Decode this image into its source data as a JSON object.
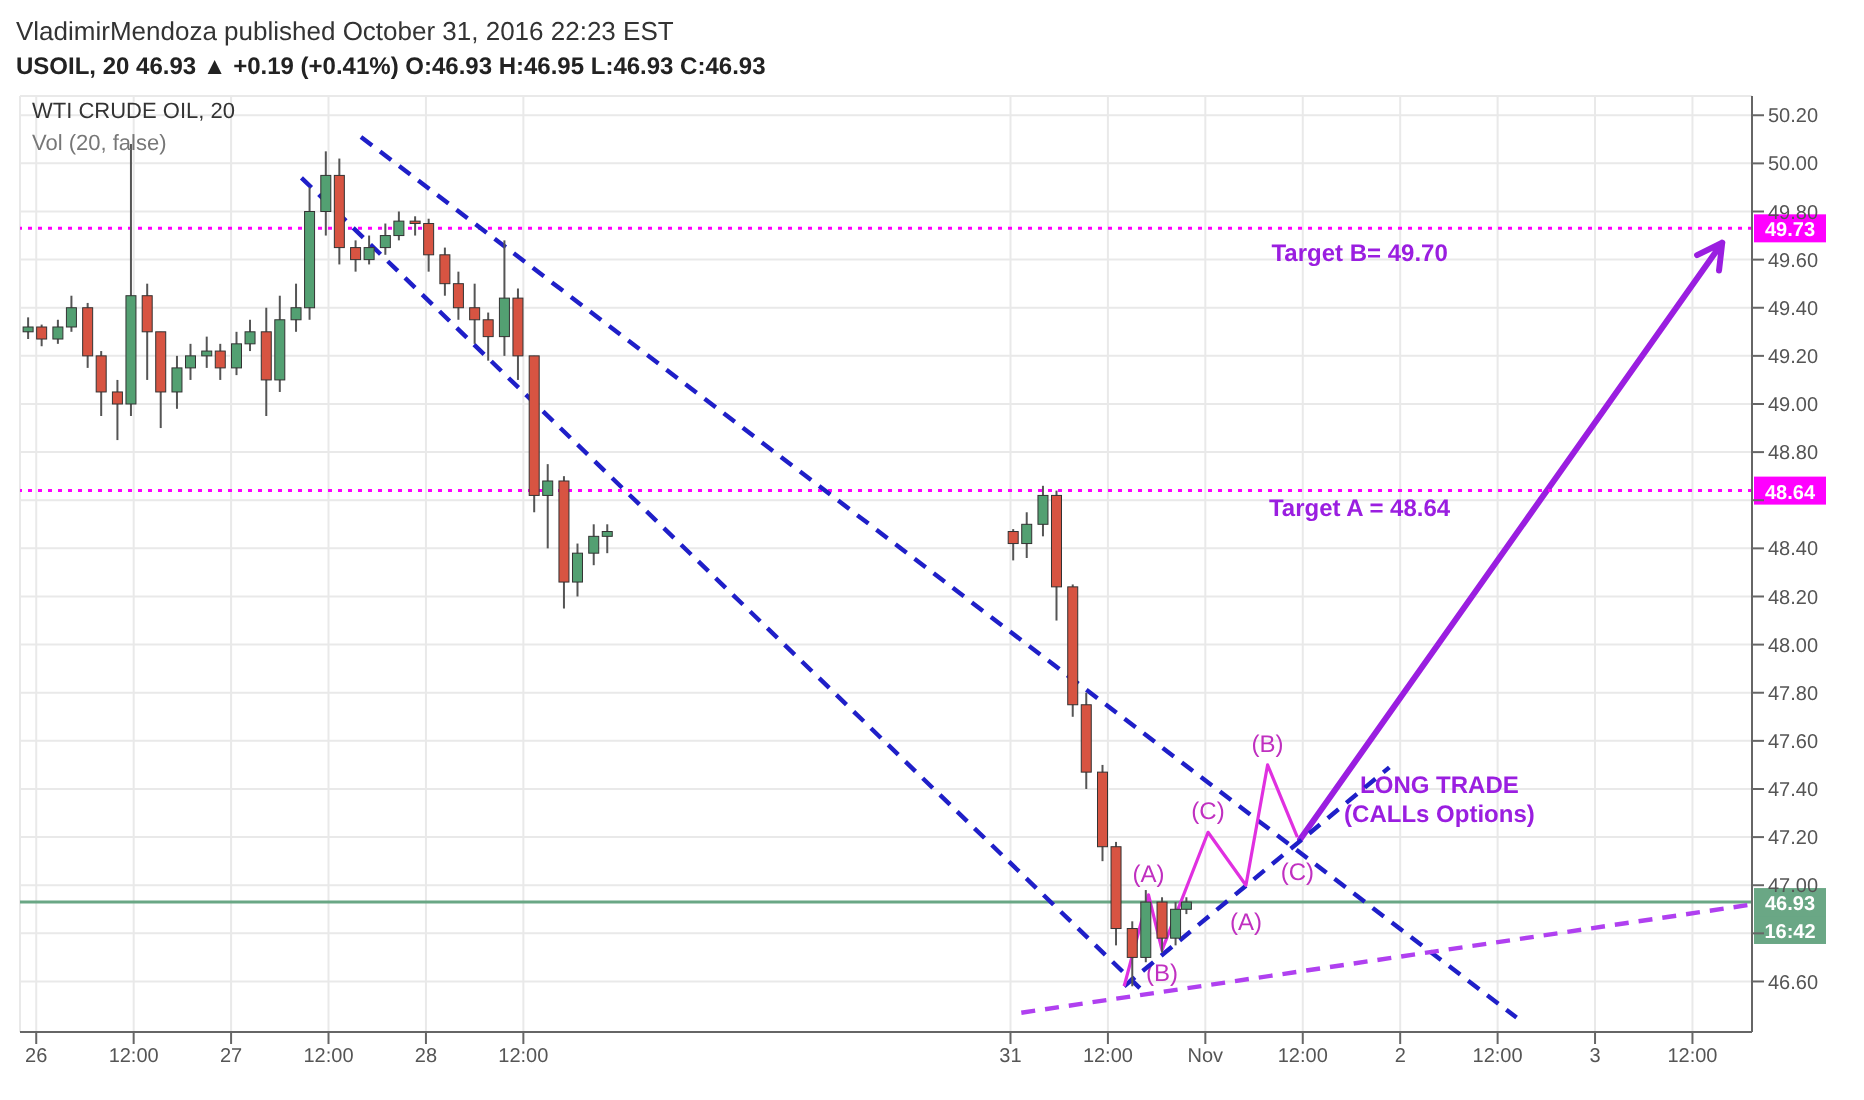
{
  "chart_data": {
    "type": "candlestick",
    "title": "VladimirMendoza published October 31, 2016 22:23 EST",
    "subtitle": "USOIL, 20 46.93 ▲ +0.19 (+0.41%) O:46.93 H:46.95 L:46.93 C:46.93",
    "x": [
      "2016-10-25T23:00",
      "2016-10-26T00:40",
      "2016-10-26T02:40",
      "2016-10-26T04:20",
      "2016-10-26T06:20",
      "2016-10-26T08:00",
      "2016-10-26T10:00",
      "2016-10-26T11:40",
      "2016-10-26T13:40",
      "2016-10-26T15:20",
      "2016-10-26T17:20",
      "2016-10-26T19:00",
      "2016-10-26T21:00",
      "2016-10-26T22:40",
      "2016-10-27T00:40",
      "2016-10-27T02:20",
      "2016-10-27T04:20",
      "2016-10-27T06:00",
      "2016-10-27T08:00",
      "2016-10-27T09:40",
      "2016-10-27T11:40",
      "2016-10-27T13:20",
      "2016-10-27T15:20",
      "2016-10-27T17:00",
      "2016-10-27T19:00",
      "2016-10-27T20:40",
      "2016-10-27T22:40",
      "2016-10-28T00:20",
      "2016-10-28T02:20",
      "2016-10-28T04:00",
      "2016-10-28T06:00",
      "2016-10-28T07:40",
      "2016-10-28T09:40",
      "2016-10-28T11:20",
      "2016-10-28T13:20",
      "2016-10-28T15:00",
      "2016-10-28T17:00",
      "2016-10-28T18:40",
      "2016-10-28T20:40",
      "2016-10-28T22:20",
      "2016-10-31T00:20",
      "2016-10-31T02:00",
      "2016-10-31T04:00",
      "2016-10-31T05:40",
      "2016-10-31T07:40",
      "2016-10-31T09:20",
      "2016-10-31T11:20",
      "2016-10-31T13:00",
      "2016-10-31T15:00",
      "2016-10-31T16:40",
      "2016-10-31T18:40",
      "2016-10-31T20:20",
      "2016-10-31T21:40"
    ],
    "ohlc": [
      [
        49.3,
        49.36,
        49.27,
        49.32
      ],
      [
        49.32,
        49.33,
        49.24,
        49.27
      ],
      [
        49.27,
        49.35,
        49.25,
        49.32
      ],
      [
        49.32,
        49.45,
        49.3,
        49.4
      ],
      [
        49.4,
        49.42,
        49.15,
        49.2
      ],
      [
        49.2,
        49.22,
        48.95,
        49.05
      ],
      [
        49.05,
        49.1,
        48.85,
        49.0
      ],
      [
        49.0,
        50.08,
        48.95,
        49.45
      ],
      [
        49.45,
        49.5,
        49.1,
        49.3
      ],
      [
        49.3,
        49.3,
        48.9,
        49.05
      ],
      [
        49.05,
        49.2,
        48.98,
        49.15
      ],
      [
        49.15,
        49.25,
        49.1,
        49.2
      ],
      [
        49.2,
        49.28,
        49.15,
        49.22
      ],
      [
        49.22,
        49.25,
        49.1,
        49.15
      ],
      [
        49.15,
        49.3,
        49.12,
        49.25
      ],
      [
        49.25,
        49.35,
        49.22,
        49.3
      ],
      [
        49.3,
        49.4,
        48.95,
        49.1
      ],
      [
        49.1,
        49.45,
        49.05,
        49.35
      ],
      [
        49.35,
        49.5,
        49.3,
        49.4
      ],
      [
        49.4,
        49.9,
        49.35,
        49.8
      ],
      [
        49.8,
        50.05,
        49.7,
        49.95
      ],
      [
        49.95,
        50.02,
        49.58,
        49.65
      ],
      [
        49.65,
        49.68,
        49.55,
        49.6
      ],
      [
        49.6,
        49.7,
        49.58,
        49.65
      ],
      [
        49.65,
        49.75,
        49.62,
        49.7
      ],
      [
        49.7,
        49.8,
        49.68,
        49.76
      ],
      [
        49.76,
        49.78,
        49.7,
        49.75
      ],
      [
        49.75,
        49.77,
        49.55,
        49.62
      ],
      [
        49.62,
        49.65,
        49.45,
        49.5
      ],
      [
        49.5,
        49.55,
        49.35,
        49.4
      ],
      [
        49.4,
        49.5,
        49.25,
        49.35
      ],
      [
        49.35,
        49.38,
        49.18,
        49.28
      ],
      [
        49.28,
        49.68,
        49.2,
        49.44
      ],
      [
        49.44,
        49.48,
        49.1,
        49.2
      ],
      [
        49.2,
        49.2,
        48.55,
        48.62
      ],
      [
        48.62,
        48.75,
        48.4,
        48.68
      ],
      [
        48.68,
        48.7,
        48.15,
        48.26
      ],
      [
        48.26,
        48.42,
        48.2,
        48.38
      ],
      [
        48.38,
        48.5,
        48.33,
        48.45
      ],
      [
        48.45,
        48.5,
        48.38,
        48.47
      ],
      [
        48.47,
        48.48,
        48.35,
        48.42
      ],
      [
        48.42,
        48.55,
        48.36,
        48.5
      ],
      [
        48.5,
        48.66,
        48.45,
        48.62
      ],
      [
        48.62,
        48.64,
        48.1,
        48.24
      ],
      [
        48.24,
        48.25,
        47.7,
        47.75
      ],
      [
        47.75,
        47.8,
        47.4,
        47.47
      ],
      [
        47.47,
        47.5,
        47.1,
        47.16
      ],
      [
        47.16,
        47.18,
        46.75,
        46.82
      ],
      [
        46.82,
        46.85,
        46.58,
        46.7
      ],
      [
        46.7,
        46.98,
        46.68,
        46.93
      ],
      [
        46.93,
        46.95,
        46.72,
        46.78
      ],
      [
        46.78,
        46.93,
        46.75,
        46.9
      ],
      [
        46.9,
        46.95,
        46.88,
        46.93
      ]
    ],
    "series": [
      {
        "type": "line",
        "color": "#1f1fc8",
        "line_style": "dashed",
        "x": [
          "2016-10-27T08:40",
          "2016-10-31T16:00"
        ],
        "values": [
          49.94,
          46.57
        ]
      },
      {
        "type": "line",
        "color": "#1f1fc8",
        "line_style": "dashed",
        "x": [
          "2016-10-27T16:00",
          "2016-11-02T14:20"
        ],
        "values": [
          50.11,
          46.45
        ]
      },
      {
        "type": "line",
        "color": "#1f1fc8",
        "line_style": "dashed",
        "x": [
          "2016-10-31T14:00",
          "2016-11-01T22:40"
        ],
        "values": [
          46.58,
          47.49
        ]
      },
      {
        "type": "line",
        "color": "#b040f0",
        "line_style": "dashed",
        "x": [
          "2016-10-31T01:20",
          "2016-11-03T19:20"
        ],
        "values": [
          46.47,
          46.92
        ]
      },
      {
        "type": "line",
        "color": "#e030e0",
        "line_style": "solid",
        "x": [
          "2016-10-31T14:00",
          "2016-10-31T17:00",
          "2016-10-31T18:40",
          "2016-11-01T00:20",
          "2016-11-01T05:00",
          "2016-11-01T07:40",
          "2016-11-01T11:20"
        ],
        "values": [
          46.58,
          46.96,
          46.73,
          47.22,
          47.0,
          47.5,
          47.2
        ]
      }
    ],
    "xlim": [
      "2016-10-25T22:00",
      "2016-11-03T19:20"
    ],
    "xticks": [
      {
        "value": "2016-10-26",
        "label": "26"
      },
      {
        "value": "2016-10-26T12:00",
        "label": "12:00"
      },
      {
        "value": "2016-10-27",
        "label": "27"
      },
      {
        "value": "2016-10-27T12:00",
        "label": "12:00"
      },
      {
        "value": "2016-10-28",
        "label": "28"
      },
      {
        "value": "2016-10-28T12:00",
        "label": "12:00"
      },
      {
        "value": "2016-10-31",
        "label": "31"
      },
      {
        "value": "2016-10-31T12:00",
        "label": "12:00"
      },
      {
        "value": "2016-11-01",
        "label": "Nov"
      },
      {
        "value": "2016-11-01T12:00",
        "label": "12:00"
      },
      {
        "value": "2016-11-02",
        "label": "2"
      },
      {
        "value": "2016-11-02T12:00",
        "label": "12:00"
      },
      {
        "value": "2016-11-03",
        "label": "3"
      },
      {
        "value": "2016-11-03T12:00",
        "label": "12:00"
      }
    ],
    "ylim": [
      46.39,
      50.28
    ],
    "yticks": [
      {
        "value": 46.6,
        "label": "46.60"
      },
      {
        "value": 46.8,
        "label": null
      },
      {
        "value": 47,
        "label": "47.00"
      },
      {
        "value": 47.2,
        "label": "47.20"
      },
      {
        "value": 47.4,
        "label": "47.40"
      },
      {
        "value": 47.6,
        "label": "47.60"
      },
      {
        "value": 47.8,
        "label": "47.80"
      },
      {
        "value": 48,
        "label": "48.00"
      },
      {
        "value": 48.2,
        "label": "48.20"
      },
      {
        "value": 48.4,
        "label": "48.40"
      },
      {
        "value": 48.6,
        "label": null
      },
      {
        "value": 48.8,
        "label": "48.80"
      },
      {
        "value": 49,
        "label": "49.00"
      },
      {
        "value": 49.2,
        "label": "49.20"
      },
      {
        "value": 49.4,
        "label": "49.40"
      },
      {
        "value": 49.6,
        "label": "49.60"
      },
      {
        "value": 49.8,
        "label": "49.80"
      },
      {
        "value": 50,
        "label": "50.00"
      },
      {
        "value": 50.2,
        "label": "50.20"
      }
    ],
    "ref_lines": [
      {
        "axis": "y",
        "value": 49.73,
        "label": "49.73",
        "color": "#ff00ff",
        "line_style": "dotted"
      },
      {
        "axis": "y",
        "value": 48.64,
        "label": "48.64",
        "color": "#ff00ff",
        "line_style": "dotted"
      },
      {
        "axis": "y",
        "value": 46.93,
        "label": "46.93",
        "color": "#6aa785",
        "line_style": "solid"
      }
    ],
    "annotations": [
      "WTI CRUDE OIL, 20",
      "Vol (20, false)",
      "Target B= 49.70",
      "Target A = 48.64",
      "(A)",
      "(B)",
      "(C)",
      "(A)",
      "(B)",
      "(C)",
      "LONG TRADE",
      "(CALLs Options)",
      "16:42"
    ],
    "grid": true,
    "marker": "none"
  }
}
